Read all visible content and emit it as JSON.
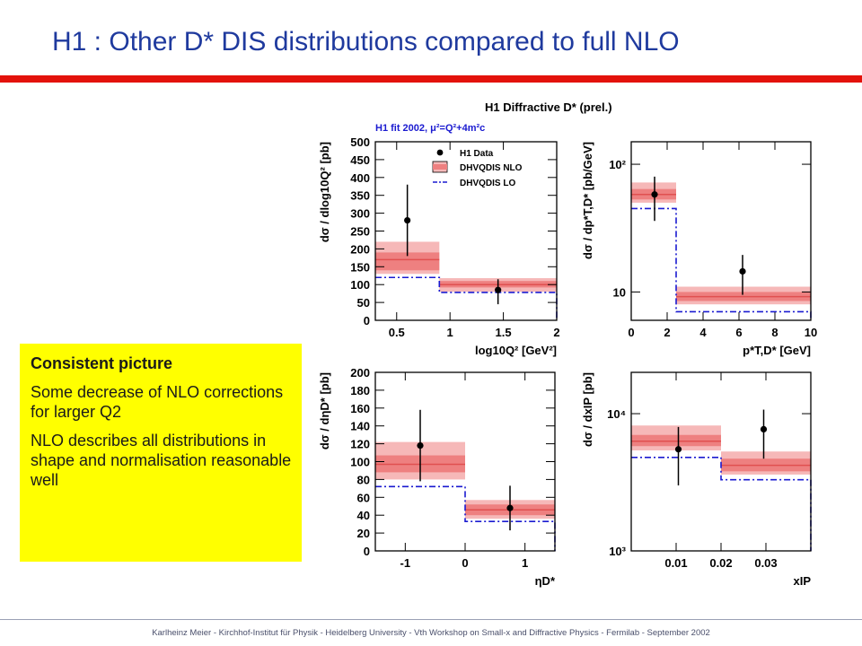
{
  "slide": {
    "title": "H1 : Other D* DIS distributions compared to full NLO",
    "footer": "Karlheinz Meier - Kirchhof-Institut für Physik - Heidelberg University - Vth Workshop on Small-x and Diffractive Physics - Fermilab - September 2002"
  },
  "textbox": {
    "heading": "Consistent picture",
    "items": [
      "Some decrease of NLO corrections for larger Q2",
      "NLO describes all distributions in shape and normalisation reasonable well"
    ]
  },
  "figure": {
    "header": "H1 Diffractive D* (prel.)",
    "fit_label": "H1 fit 2002, μ²=Q²+4m²c",
    "legend": {
      "data": "H1 Data",
      "nlo": "DHVQDIS NLO",
      "lo": "DHVQDIS LO"
    },
    "colors": {
      "data": "#000000",
      "nlo_outer": "#f6b8b8",
      "nlo_inner": "#ee8080",
      "nlo_line": "#e05050",
      "lo": "#1a1ad0",
      "fit_label": "#1a1ad0"
    }
  },
  "chart_data": [
    {
      "type": "scatter",
      "panel": "top-left",
      "ylabel": "dσ / dlog10Q² [pb]",
      "xlabel": "log10Q² [GeV²]",
      "xlim": [
        0.3,
        2
      ],
      "ylim": [
        0,
        500
      ],
      "yscale": "linear",
      "xticks": [
        0.5,
        1,
        1.5,
        2
      ],
      "xtick_labels": [
        "0.5",
        "1",
        "1.5",
        "2"
      ],
      "yticks": [
        0,
        50,
        100,
        150,
        200,
        250,
        300,
        350,
        400,
        450,
        500
      ],
      "ytick_labels": [
        "0",
        "50",
        "100",
        "150",
        "200",
        "250",
        "300",
        "350",
        "400",
        "450",
        "500"
      ],
      "bins": [
        [
          0.3,
          0.9
        ],
        [
          0.9,
          2.0
        ]
      ],
      "data": {
        "x": [
          0.6,
          1.45
        ],
        "y": [
          280,
          85
        ],
        "yerr_low": [
          100,
          40
        ],
        "yerr_high": [
          100,
          30
        ]
      },
      "nlo": {
        "center": [
          170,
          100
        ],
        "inner": [
          [
            140,
            190
          ],
          [
            92,
            110
          ]
        ],
        "outer": [
          [
            130,
            220
          ],
          [
            80,
            118
          ]
        ]
      },
      "lo": [
        120,
        78
      ]
    },
    {
      "type": "scatter",
      "panel": "top-right",
      "ylabel": "dσ / dp*T,D* [pb/GeV]",
      "xlabel": "p*T,D* [GeV]",
      "xlim": [
        0,
        10
      ],
      "ylim": [
        6,
        150
      ],
      "yscale": "log",
      "xticks": [
        0,
        2,
        4,
        6,
        8,
        10
      ],
      "xtick_labels": [
        "0",
        "2",
        "4",
        "6",
        "8",
        "10"
      ],
      "yticks": [
        10,
        100
      ],
      "ytick_labels": [
        "10",
        "10²"
      ],
      "bins": [
        [
          0,
          2.5
        ],
        [
          2.5,
          10
        ]
      ],
      "data": {
        "x": [
          1.3,
          6.2
        ],
        "y": [
          58,
          14.5
        ],
        "yerr_low": [
          22,
          5
        ],
        "yerr_high": [
          22,
          5
        ]
      },
      "nlo": {
        "center": [
          58,
          9.2
        ],
        "inner": [
          [
            53,
            64
          ],
          [
            8.5,
            10.0
          ]
        ],
        "outer": [
          [
            50,
            72
          ],
          [
            8.0,
            11.0
          ]
        ]
      },
      "lo": [
        45,
        7
      ]
    },
    {
      "type": "scatter",
      "panel": "bottom-left",
      "ylabel": "dσ / dηD* [pb]",
      "xlabel": "ηD*",
      "xlim": [
        -1.5,
        1.5
      ],
      "ylim": [
        0,
        200
      ],
      "yscale": "linear",
      "xticks": [
        -1,
        0,
        1
      ],
      "xtick_labels": [
        "-1",
        "0",
        "1"
      ],
      "yticks": [
        0,
        20,
        40,
        60,
        80,
        100,
        120,
        140,
        160,
        180,
        200
      ],
      "ytick_labels": [
        "0",
        "20",
        "40",
        "60",
        "80",
        "100",
        "120",
        "140",
        "160",
        "180",
        "200"
      ],
      "bins": [
        [
          -1.5,
          0
        ],
        [
          0,
          1.5
        ]
      ],
      "data": {
        "x": [
          -0.75,
          0.75
        ],
        "y": [
          118,
          48
        ],
        "yerr_low": [
          40,
          25
        ],
        "yerr_high": [
          40,
          25
        ]
      },
      "nlo": {
        "center": [
          97,
          46
        ],
        "inner": [
          [
            88,
            107
          ],
          [
            40,
            52
          ]
        ],
        "outer": [
          [
            80,
            122
          ],
          [
            36,
            57
          ]
        ]
      },
      "lo": [
        72,
        33
      ]
    },
    {
      "type": "scatter",
      "panel": "bottom-right",
      "ylabel": "dσ / dxIP [pb]",
      "xlabel": "xIP",
      "xlim": [
        0,
        0.04
      ],
      "ylim": [
        1000,
        20000
      ],
      "yscale": "log",
      "xticks": [
        0.01,
        0.02,
        0.03
      ],
      "xtick_labels": [
        "0.01",
        "0.02",
        "0.03"
      ],
      "yticks": [
        1000,
        10000
      ],
      "ytick_labels": [
        "10³",
        "10⁴"
      ],
      "bins": [
        [
          0,
          0.02
        ],
        [
          0.02,
          0.04
        ]
      ],
      "data": {
        "x": [
          0.0105,
          0.0295
        ],
        "y": [
          5500,
          7700
        ],
        "yerr_low": [
          2500,
          3000
        ],
        "yerr_high": [
          2500,
          3000
        ]
      },
      "nlo": {
        "center": [
          6300,
          4200
        ],
        "inner": [
          [
            5800,
            7000
          ],
          [
            3800,
            4700
          ]
        ],
        "outer": [
          [
            5400,
            8200
          ],
          [
            3600,
            5300
          ]
        ]
      },
      "lo": [
        4800,
        3300
      ]
    }
  ]
}
